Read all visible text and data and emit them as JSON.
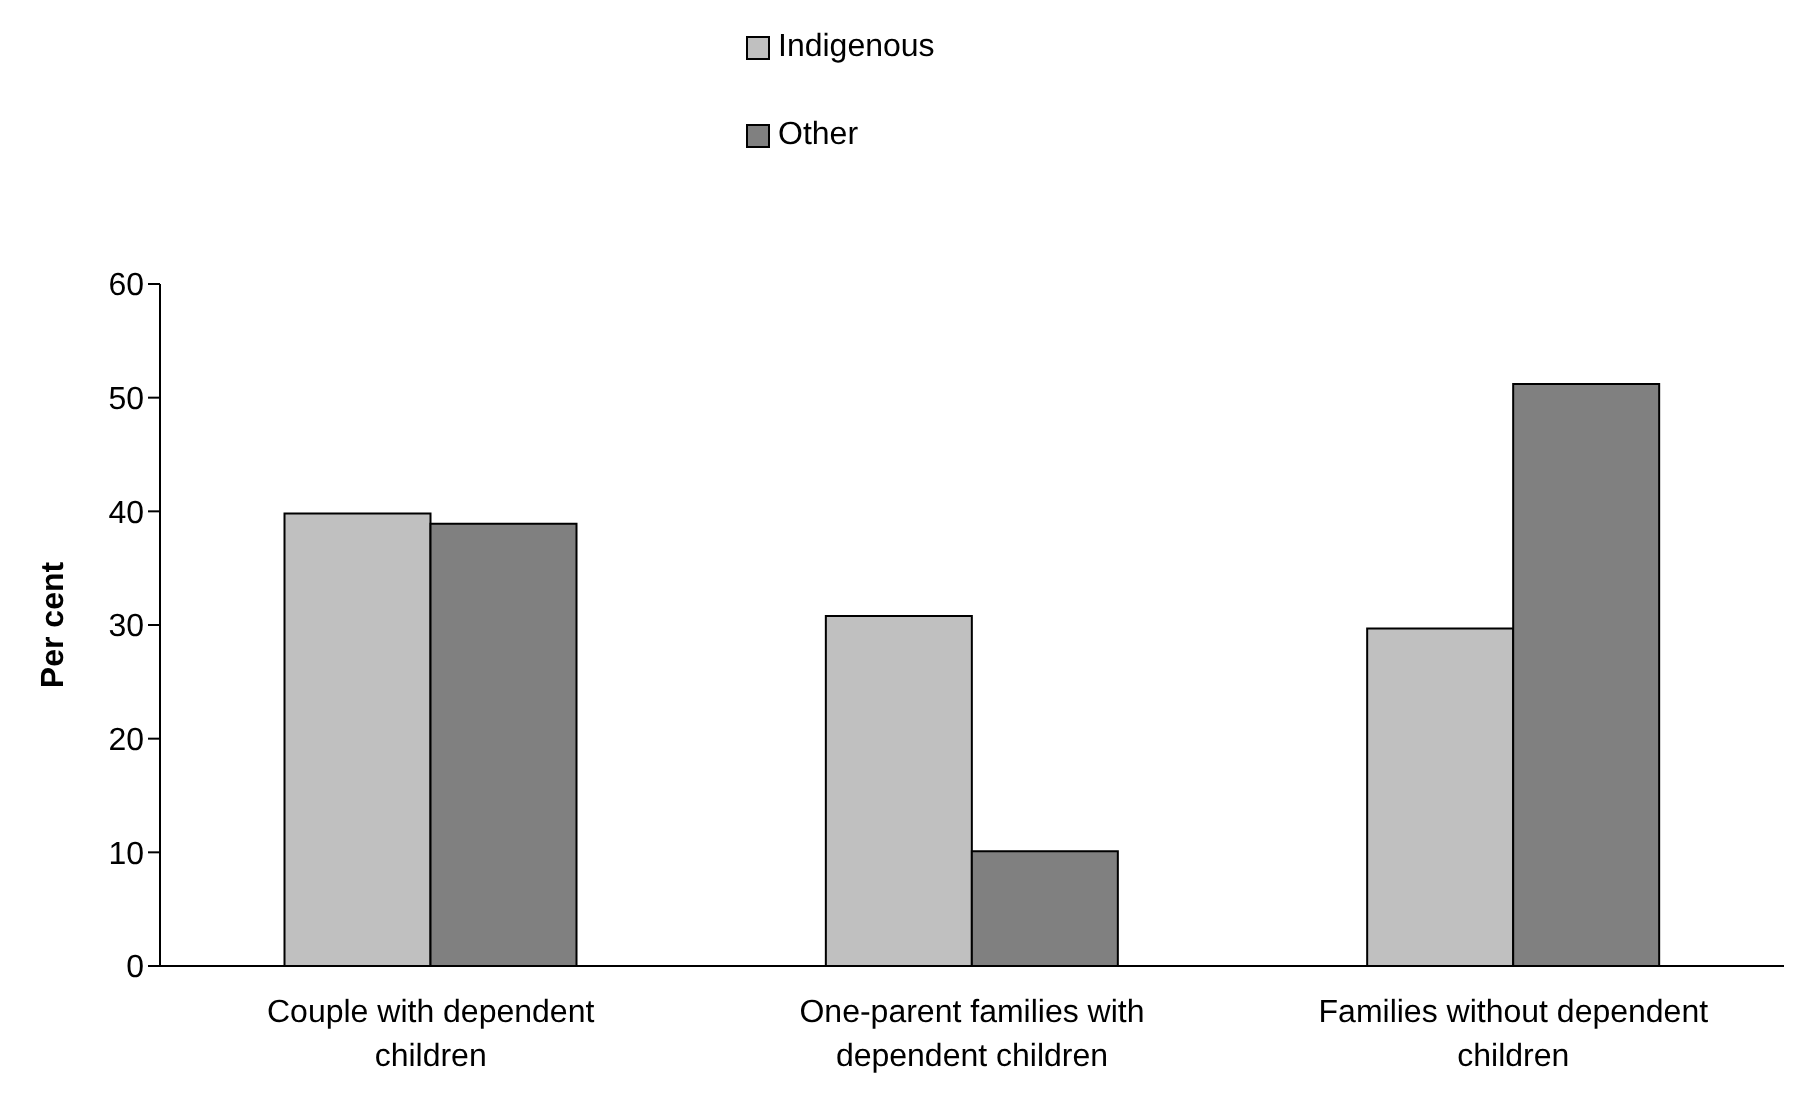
{
  "chart_data": {
    "type": "bar",
    "ylabel": "Per cent",
    "categories": [
      "Couple with dependent children",
      "One-parent families with dependent children",
      "Families without dependent children"
    ],
    "series": [
      {
        "name": "Indigenous",
        "color": "#c0c0c0",
        "values": [
          39.8,
          30.8,
          29.7
        ]
      },
      {
        "name": "Other",
        "color": "#808080",
        "values": [
          38.9,
          10.1,
          51.2
        ]
      }
    ],
    "ylim": [
      0,
      60
    ],
    "yticks": [
      0,
      10,
      20,
      30,
      40,
      50,
      60
    ],
    "grid": false,
    "legend": "top"
  }
}
